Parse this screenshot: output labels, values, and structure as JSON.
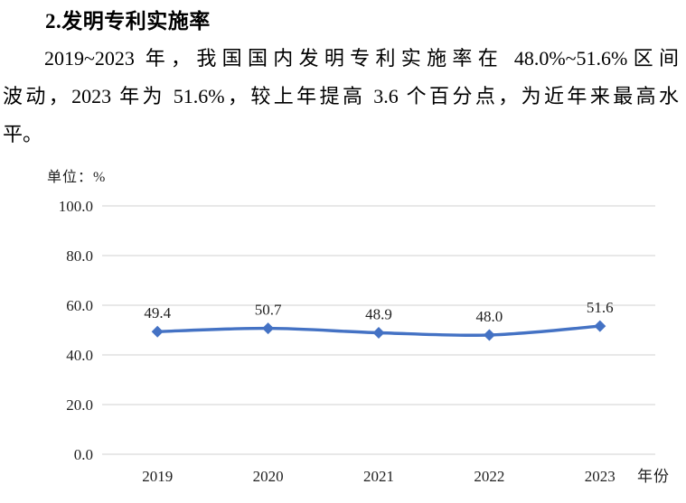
{
  "document": {
    "heading": "2.发明专利实施率",
    "paragraph_lines": [
      "2019~2023 年，我国国内发明专利实施率在 48.0%~51.6%区间",
      "波动，2023 年为 51.6%，较上年提高 3.6 个百分点，为近年来最高水",
      "平。"
    ]
  },
  "chart_data": {
    "type": "line",
    "title": "",
    "unit_label": "单位：%",
    "x_axis_title": "年份",
    "categories": [
      "2019",
      "2020",
      "2021",
      "2022",
      "2023"
    ],
    "values": [
      49.4,
      50.7,
      48.9,
      48.0,
      51.6
    ],
    "data_labels": [
      "49.4",
      "50.7",
      "48.9",
      "48.0",
      "51.6"
    ],
    "y_ticks": [
      "100.0",
      "80.0",
      "60.0",
      "40.0",
      "20.0",
      "0.0"
    ],
    "ylim": [
      0,
      100
    ],
    "grid": "horizontal-only",
    "legend": "none",
    "line_color": "#4472c4",
    "marker": "diamond",
    "gridline_color": "#d9d9d9",
    "label_color": "#1f1f1f"
  }
}
